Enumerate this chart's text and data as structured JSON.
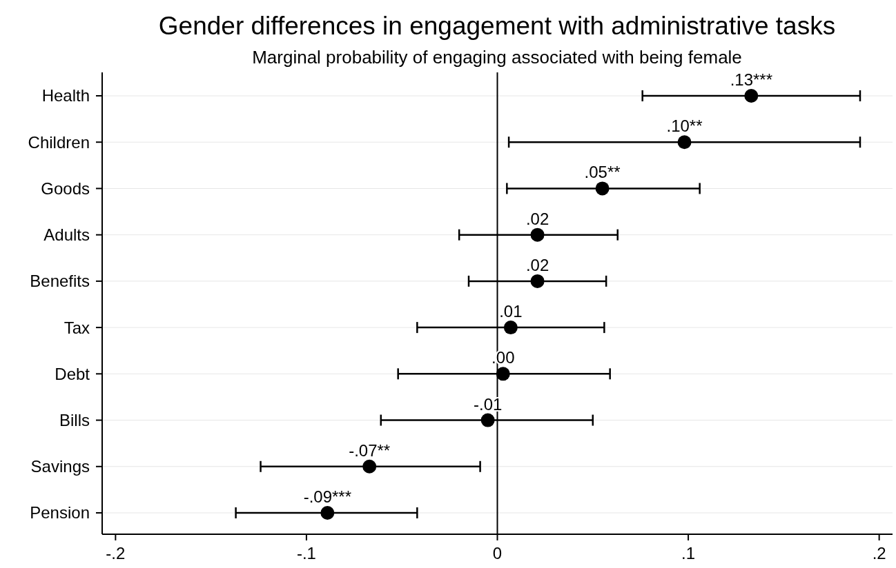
{
  "chart_data": {
    "type": "scatter",
    "orientation": "horizontal",
    "title": "Gender differences in engagement with administrative tasks",
    "subtitle": "Marginal probability of engaging associated with being female",
    "categories": [
      "Health",
      "Children",
      "Goods",
      "Adults",
      "Benefits",
      "Tax",
      "Debt",
      "Bills",
      "Savings",
      "Pension"
    ],
    "values": [
      0.133,
      0.098,
      0.055,
      0.021,
      0.021,
      0.007,
      0.003,
      -0.005,
      -0.067,
      -0.089
    ],
    "errors": [
      [
        0.076,
        0.19
      ],
      [
        0.006,
        0.19
      ],
      [
        0.005,
        0.106
      ],
      [
        -0.02,
        0.063
      ],
      [
        -0.015,
        0.057
      ],
      [
        -0.042,
        0.056
      ],
      [
        -0.052,
        0.059
      ],
      [
        -0.061,
        0.05
      ],
      [
        -0.124,
        -0.009
      ],
      [
        -0.137,
        -0.042
      ]
    ],
    "value_labels": [
      ".13***",
      ".10**",
      ".05**",
      ".02",
      ".02",
      ".01",
      ".00",
      "-.01",
      "-.07**",
      "-.09***"
    ],
    "color": "#000000",
    "marker": "circle",
    "grid": "y",
    "xlim": [
      -0.207,
      0.207
    ],
    "xticks": [
      {
        "value": -0.2,
        "label": "-.2"
      },
      {
        "value": -0.1,
        "label": "-.1"
      },
      0,
      {
        "value": 0.1,
        "label": ".1"
      },
      {
        "value": 0.2,
        "label": ".2"
      }
    ],
    "ref_lines": [
      {
        "axis": "x",
        "value": 0,
        "color": "#000000"
      }
    ]
  }
}
